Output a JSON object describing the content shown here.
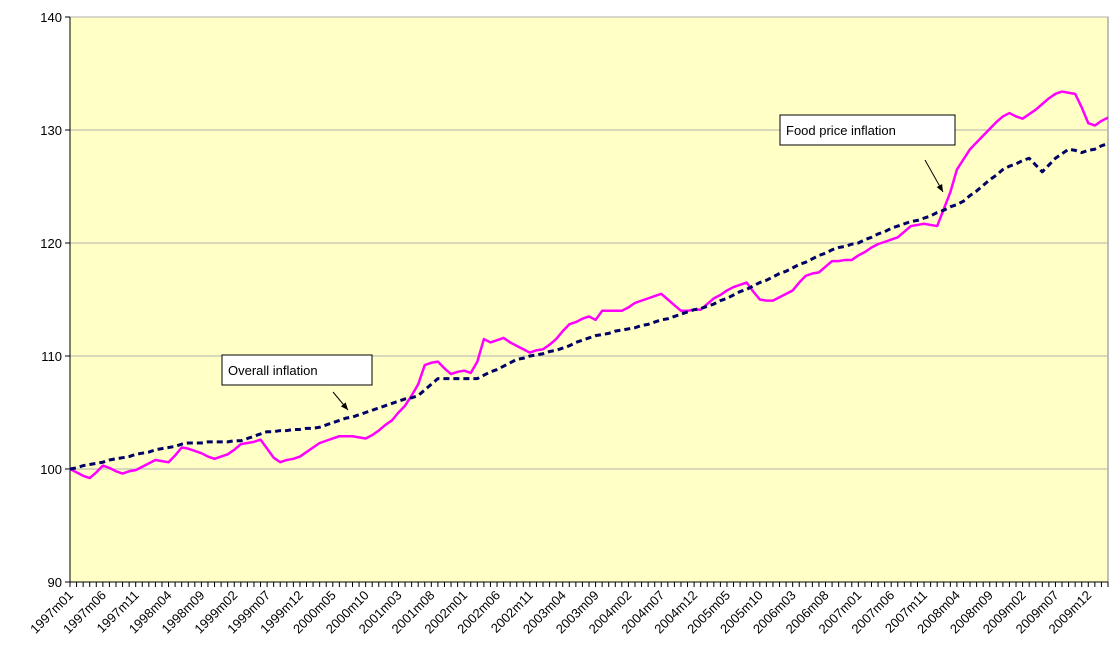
{
  "chart_data": {
    "type": "line",
    "categories": [
      "1997m01",
      null,
      null,
      null,
      null,
      "1997m06",
      null,
      null,
      null,
      null,
      "1997m11",
      null,
      null,
      null,
      null,
      "1998m04",
      null,
      null,
      null,
      null,
      "1998m09",
      null,
      null,
      null,
      null,
      "1999m02",
      null,
      null,
      null,
      null,
      "1999m07",
      null,
      null,
      null,
      null,
      "1999m12",
      null,
      null,
      null,
      null,
      "2000m05",
      null,
      null,
      null,
      null,
      "2000m10",
      null,
      null,
      null,
      null,
      "2001m03",
      null,
      null,
      null,
      null,
      "2001m08",
      null,
      null,
      null,
      null,
      "2002m01",
      null,
      null,
      null,
      null,
      "2002m06",
      null,
      null,
      null,
      null,
      "2002m11",
      null,
      null,
      null,
      null,
      "2003m04",
      null,
      null,
      null,
      null,
      "2003m09",
      null,
      null,
      null,
      null,
      "2004m02",
      null,
      null,
      null,
      null,
      "2004m07",
      null,
      null,
      null,
      null,
      "2004m12",
      null,
      null,
      null,
      null,
      "2005m05",
      null,
      null,
      null,
      null,
      "2005m10",
      null,
      null,
      null,
      null,
      "2006m03",
      null,
      null,
      null,
      null,
      "2006m08",
      null,
      null,
      null,
      null,
      "2007m01",
      null,
      null,
      null,
      null,
      "2007m06",
      null,
      null,
      null,
      null,
      "2007m11",
      null,
      null,
      null,
      null,
      "2008m04",
      null,
      null,
      null,
      null,
      "2008m09",
      null,
      null,
      null,
      null,
      "2009m02",
      null,
      null,
      null,
      null,
      "2009m07",
      null,
      null,
      null,
      null,
      "2009m12",
      null,
      null,
      null
    ],
    "series": [
      {
        "name": "Food price inflation",
        "color": "#ff00ff",
        "dashed": false,
        "values": [
          100.0,
          99.7,
          99.4,
          99.2,
          99.7,
          100.3,
          100.1,
          99.8,
          99.6,
          99.8,
          99.9,
          100.2,
          100.5,
          100.8,
          100.7,
          100.6,
          101.2,
          101.9,
          101.8,
          101.6,
          101.4,
          101.1,
          100.9,
          101.1,
          101.3,
          101.7,
          102.2,
          102.3,
          102.4,
          102.6,
          101.8,
          101.0,
          100.6,
          100.8,
          100.9,
          101.1,
          101.5,
          101.9,
          102.3,
          102.5,
          102.7,
          102.9,
          102.9,
          102.9,
          102.8,
          102.7,
          103.0,
          103.4,
          103.9,
          104.3,
          105.0,
          105.6,
          106.5,
          107.5,
          109.2,
          109.4,
          109.5,
          108.9,
          108.4,
          108.6,
          108.7,
          108.5,
          109.5,
          111.5,
          111.2,
          111.4,
          111.6,
          111.2,
          110.9,
          110.6,
          110.3,
          110.5,
          110.6,
          111.0,
          111.5,
          112.2,
          112.8,
          113.0,
          113.3,
          113.5,
          113.2,
          114.0,
          114.0,
          114.0,
          114.0,
          114.3,
          114.7,
          114.9,
          115.1,
          115.3,
          115.5,
          115.0,
          114.5,
          114.0,
          114.0,
          114.1,
          114.1,
          114.6,
          115.1,
          115.4,
          115.8,
          116.1,
          116.3,
          116.5,
          115.7,
          115.0,
          114.9,
          114.9,
          115.2,
          115.5,
          115.8,
          116.5,
          117.1,
          117.3,
          117.4,
          117.9,
          118.4,
          118.4,
          118.5,
          118.5,
          118.9,
          119.2,
          119.6,
          119.9,
          120.1,
          120.3,
          120.5,
          121.0,
          121.5,
          121.6,
          121.7,
          121.6,
          121.5,
          123.0,
          124.5,
          126.5,
          127.4,
          128.3,
          128.9,
          129.5,
          130.1,
          130.7,
          131.2,
          131.5,
          131.2,
          131.0,
          131.4,
          131.8,
          132.3,
          132.8,
          133.2,
          133.4,
          133.3,
          133.2,
          132.0,
          130.6,
          130.4,
          130.8,
          131.1
        ]
      },
      {
        "name": "Overall inflation",
        "color": "#000066",
        "dashed": true,
        "values": [
          100.0,
          100.1,
          100.3,
          100.4,
          100.5,
          100.6,
          100.8,
          100.9,
          101.0,
          101.1,
          101.3,
          101.4,
          101.5,
          101.7,
          101.8,
          101.9,
          102.0,
          102.2,
          102.3,
          102.3,
          102.3,
          102.4,
          102.4,
          102.4,
          102.4,
          102.5,
          102.5,
          102.7,
          102.9,
          103.1,
          103.3,
          103.3,
          103.4,
          103.4,
          103.5,
          103.5,
          103.6,
          103.6,
          103.7,
          103.9,
          104.1,
          104.3,
          104.5,
          104.6,
          104.8,
          105.0,
          105.2,
          105.4,
          105.6,
          105.8,
          106.0,
          106.2,
          106.3,
          106.5,
          107.0,
          107.5,
          108.0,
          108.0,
          108.0,
          108.0,
          108.0,
          108.0,
          108.0,
          108.3,
          108.6,
          108.8,
          109.1,
          109.4,
          109.7,
          109.8,
          110.0,
          110.1,
          110.2,
          110.4,
          110.5,
          110.7,
          110.9,
          111.2,
          111.4,
          111.6,
          111.8,
          111.9,
          112.0,
          112.2,
          112.3,
          112.4,
          112.5,
          112.7,
          112.8,
          113.0,
          113.2,
          113.3,
          113.5,
          113.7,
          113.9,
          114.1,
          114.2,
          114.4,
          114.6,
          114.9,
          115.1,
          115.4,
          115.7,
          115.9,
          116.2,
          116.5,
          116.7,
          117.0,
          117.3,
          117.5,
          117.8,
          118.1,
          118.3,
          118.6,
          118.9,
          119.1,
          119.4,
          119.6,
          119.7,
          119.9,
          120.0,
          120.3,
          120.5,
          120.8,
          121.0,
          121.3,
          121.5,
          121.7,
          121.9,
          122.0,
          122.2,
          122.4,
          122.7,
          122.9,
          123.2,
          123.4,
          123.7,
          124.2,
          124.6,
          125.1,
          125.6,
          126.0,
          126.5,
          126.8,
          127.0,
          127.3,
          127.5,
          126.9,
          126.3,
          126.9,
          127.5,
          127.9,
          128.3,
          128.2,
          128.0,
          128.2,
          128.3,
          128.6,
          128.8
        ]
      }
    ],
    "ylim": [
      90,
      140
    ],
    "yticks": [
      90,
      100,
      110,
      120,
      130,
      140
    ],
    "grid": true,
    "plot_background": "#ffffc6"
  }
}
